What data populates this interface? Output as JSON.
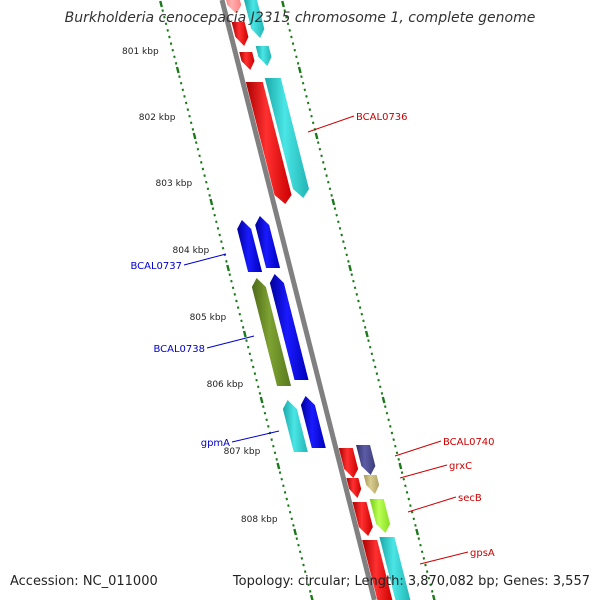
{
  "title": "Burkholderia cenocepacia J2315 chromosome 1, complete genome",
  "footer": {
    "accession": "Accession: NC_011000",
    "summary": "Topology: circular; Length: 3,870,082 bp; Genes: 3,557"
  },
  "colors": {
    "backbone": "#808080",
    "tick": "#1a7a1a",
    "label_forward_strand": "#0000cc",
    "label_reverse_strand": "#cc0000",
    "cds_red": "#ff0000",
    "cds_cyan": "#27c9c9",
    "cds_blue": "#0000dd",
    "cds_olive": "#6b8e23",
    "cds_navy": "#4a4a8c",
    "cds_khaki": "#c8b878",
    "cds_lime": "#99ee33",
    "cds_pink": "#ff8888"
  },
  "scale": {
    "unit": "kbp",
    "labels": [
      "801 kbp",
      "802 kbp",
      "803 kbp",
      "804 kbp",
      "805 kbp",
      "806 kbp",
      "807 kbp",
      "808 kbp"
    ]
  },
  "gene_labels": {
    "left": [
      "BCAL0737",
      "BCAL0738",
      "gpmA"
    ],
    "right": [
      "BCAL0736",
      "BCAL0740",
      "grxC",
      "secB",
      "gpsA"
    ]
  }
}
